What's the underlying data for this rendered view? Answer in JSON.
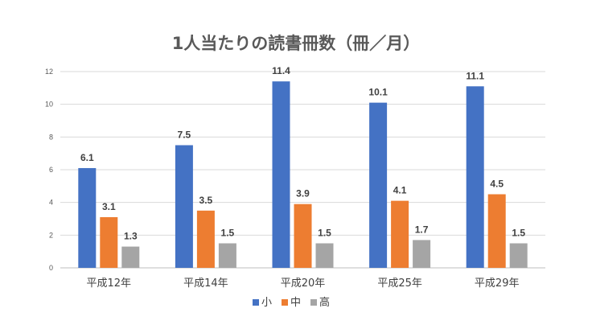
{
  "chart_data": {
    "type": "bar",
    "title": "1人当たりの読書冊数（冊／月）",
    "categories": [
      "平成12年",
      "平成14年",
      "平成20年",
      "平成25年",
      "平成29年"
    ],
    "series": [
      {
        "name": "小",
        "color": "#4472C4",
        "values": [
          6.1,
          7.5,
          11.4,
          10.1,
          11.1
        ]
      },
      {
        "name": "中",
        "color": "#ED7D31",
        "values": [
          3.1,
          3.5,
          3.9,
          4.1,
          4.5
        ]
      },
      {
        "name": "高",
        "color": "#A5A5A5",
        "values": [
          1.3,
          1.5,
          1.5,
          1.7,
          1.5
        ]
      }
    ],
    "yticks": [
      0,
      2,
      4,
      6,
      8,
      10,
      12
    ],
    "ylim": [
      0,
      12
    ],
    "grid": true,
    "legend_position": "bottom",
    "data_labels": true
  }
}
